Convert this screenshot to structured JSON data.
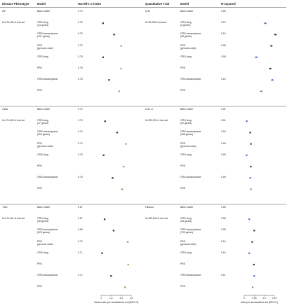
{
  "panels": [
    {
      "id": "left",
      "headers": {
        "col1": "Disease Phenotype",
        "col2": "Model",
        "col3": "Harrell's C-index"
      },
      "x_axis_label": "Hazard ratio per standardized unit [95% CI]",
      "ticks": [
        "1",
        "1.2",
        "1.4",
        "1.6"
      ],
      "groups": [
        {
          "name": "AF",
          "n": "N=476,165 in test set",
          "rows": [
            {
              "model": "Base model",
              "metric": "0.74"
            },
            {
              "model": "ITRS-drug\n(13 genes)",
              "metric": "0.75"
            },
            {
              "model": "ITRS-transcriptome\n(197 genes)",
              "metric": "0.75"
            },
            {
              "model": "PRS\n(genome-wide)",
              "metric": "0.75"
            },
            {
              "model": "ITRS-drug",
              "metric": "0.75"
            },
            {
              "model": "PRS",
              "metric": "0.75"
            },
            {
              "model": "ITRS-transcriptome",
              "metric": "0.76"
            },
            {
              "model": "PRS",
              "metric": ""
            }
          ]
        },
        {
          "name": "CAD",
          "n": "N=471,600 in test set",
          "rows": [
            {
              "model": "Base model",
              "metric": "0.72"
            },
            {
              "model": "ITRS-drug\n(37 genes)",
              "metric": "0.73"
            },
            {
              "model": "ITRS-transcriptome\n(254 genes)",
              "metric": "0.74"
            },
            {
              "model": "PRS\n(genome-wide)",
              "metric": "0.74"
            },
            {
              "model": "ITRS-drug",
              "metric": "0.75"
            },
            {
              "model": "PRS",
              "metric": ""
            },
            {
              "model": "ITRS-transcriptome",
              "metric": "0.75"
            },
            {
              "model": "PRS",
              "metric": ""
            }
          ]
        },
        {
          "name": "T2D",
          "n": "N=474,461 in test set",
          "rows": [
            {
              "model": "Base model",
              "metric": "0.67"
            },
            {
              "model": "ITRS-drug\n(35 genes)",
              "metric": "0.67"
            },
            {
              "model": "ITRS-transcriptome\n(325 genes)",
              "metric": "0.69"
            },
            {
              "model": "PRS\n(genome-wide)",
              "metric": "0.70"
            },
            {
              "model": "ITRS-drug",
              "metric": "0.71"
            },
            {
              "model": "PRS",
              "metric": ""
            },
            {
              "model": "ITRS-transcriptome",
              "metric": "0.71"
            },
            {
              "model": "PRS",
              "metric": ""
            }
          ]
        }
      ]
    },
    {
      "id": "right",
      "headers": {
        "col1": "Quantitative Trait",
        "col2": "Model",
        "col3": "R-squared"
      },
      "x_axis_label": "Beta per standardized unit [95% CI]",
      "ticks": [
        "0",
        "0.05",
        "0.1",
        "0.15"
      ],
      "groups": [
        {
          "name": "QTc",
          "n": "N=29,253 in test set",
          "rows": [
            {
              "model": "Base model",
              "metric": "0.06"
            },
            {
              "model": "ITRS-drug\n(6 genes)",
              "metric": "0.07"
            },
            {
              "model": "ITRS-transcriptome\n(55 genes)",
              "metric": "0.10"
            },
            {
              "model": "PRS\n(genome-wide)",
              "metric": "0.08"
            },
            {
              "model": "ITRS-drug",
              "metric": "0.08"
            },
            {
              "model": "PRS",
              "metric": ""
            },
            {
              "model": "ITRS-transcriptome",
              "metric": "0.10"
            },
            {
              "model": "PRS",
              "metric": ""
            }
          ]
        },
        {
          "name": "LDL-C",
          "n": "N=323,931 in test set",
          "rows": [
            {
              "model": "Base model",
              "metric": "0.01"
            },
            {
              "model": "ITRS-drug\n(22 genes)",
              "metric": "0.01"
            },
            {
              "model": "ITRS-transcriptome\n(308 genes)",
              "metric": "0.04"
            },
            {
              "model": "PRS\n(genome-wide)",
              "metric": "0.09"
            },
            {
              "model": "ITRS-drug",
              "metric": "0.09"
            },
            {
              "model": "PRS",
              "metric": ""
            },
            {
              "model": "ITRS-transcriptome",
              "metric": "0.09"
            },
            {
              "model": "PRS",
              "metric": ""
            }
          ]
        },
        {
          "name": "HbA1c",
          "n": "N=323,542 in test set",
          "rows": [
            {
              "model": "Base model",
              "metric": "0.06"
            },
            {
              "model": "ITRS-drug\n(93 genes)",
              "metric": "0.06"
            },
            {
              "model": "ITRS-transcriptome\n(799 genes)",
              "metric": "0.08"
            },
            {
              "model": "PRS\n(genome-wide)",
              "metric": "0.10"
            },
            {
              "model": "ITRS-drug",
              "metric": "0.10"
            },
            {
              "model": "PRS",
              "metric": ""
            },
            {
              "model": "ITRS-transcriptome",
              "metric": "0.11"
            },
            {
              "model": "PRS",
              "metric": ""
            }
          ]
        }
      ]
    }
  ],
  "chart_data": [
    {
      "type": "scatter",
      "xlabel": "Hazard ratio per standardized unit [95% CI]",
      "xlim": [
        1.0,
        1.6
      ],
      "series": [
        {
          "name": "AF",
          "points": [
            {
              "row": 1,
              "x": 1.04,
              "lo": 1.03,
              "hi": 1.05
            },
            {
              "row": 2,
              "x": 1.26,
              "lo": 1.24,
              "hi": 1.28
            },
            {
              "row": 3,
              "x": 1.4,
              "lo": 1.39,
              "hi": 1.42
            },
            {
              "row": 4,
              "x": 1.04,
              "lo": 1.03,
              "hi": 1.05
            },
            {
              "row": 5,
              "x": 1.4,
              "lo": 1.39,
              "hi": 1.41
            },
            {
              "row": 6,
              "x": 1.16,
              "lo": 1.15,
              "hi": 1.18
            },
            {
              "row": 7,
              "x": 1.36,
              "lo": 1.35,
              "hi": 1.37
            }
          ]
        },
        {
          "name": "CAD",
          "points": [
            {
              "row": 1,
              "x": 1.08,
              "lo": 1.07,
              "hi": 1.1
            },
            {
              "row": 2,
              "x": 1.32,
              "lo": 1.3,
              "hi": 1.34
            },
            {
              "row": 3,
              "x": 1.49,
              "lo": 1.48,
              "hi": 1.51
            },
            {
              "row": 4,
              "x": 1.05,
              "lo": 1.04,
              "hi": 1.07
            },
            {
              "row": 5,
              "x": 1.45,
              "lo": 1.43,
              "hi": 1.47
            },
            {
              "row": 6,
              "x": 1.23,
              "lo": 1.21,
              "hi": 1.25
            },
            {
              "row": 7,
              "x": 1.42,
              "lo": 1.4,
              "hi": 1.44
            }
          ]
        },
        {
          "name": "T2D",
          "points": [
            {
              "row": 1,
              "x": 1.07,
              "lo": 1.06,
              "hi": 1.09
            },
            {
              "row": 2,
              "x": 1.25,
              "lo": 1.23,
              "hi": 1.27
            },
            {
              "row": 3,
              "x": 1.53,
              "lo": 1.52,
              "hi": 1.55
            },
            {
              "row": 4,
              "x": 1.02,
              "lo": 1.01,
              "hi": 1.03
            },
            {
              "row": 5,
              "x": 1.54,
              "lo": 1.53,
              "hi": 1.55
            },
            {
              "row": 6,
              "x": 1.2,
              "lo": 1.19,
              "hi": 1.22
            },
            {
              "row": 7,
              "x": 1.48,
              "lo": 1.46,
              "hi": 1.5
            }
          ]
        }
      ],
      "marker_colors": [
        "#333333",
        "#333333",
        "#8ab05a",
        "#333333",
        "#8ab05a",
        "#333333",
        "#8ab05a"
      ]
    },
    {
      "type": "scatter",
      "xlabel": "Beta per standardized unit [95% CI]",
      "xlim": [
        0,
        0.15
      ],
      "series": [
        {
          "name": "QTc",
          "points": [
            {
              "row": 1,
              "x": 0.105,
              "lo": 0.097,
              "hi": 0.113
            },
            {
              "row": 2,
              "x": 0.155,
              "lo": 0.147,
              "hi": 0.163
            },
            {
              "row": 3,
              "x": 0.135,
              "lo": 0.127,
              "hi": 0.143
            },
            {
              "row": 4,
              "x": 0.06,
              "lo": 0.052,
              "hi": 0.068
            },
            {
              "row": 5,
              "x": 0.13,
              "lo": 0.122,
              "hi": 0.138
            },
            {
              "row": 6,
              "x": 0.14,
              "lo": 0.132,
              "hi": 0.148
            },
            {
              "row": 7,
              "x": 0.085,
              "lo": 0.077,
              "hi": 0.093
            }
          ]
        },
        {
          "name": "LDL-C",
          "points": [
            {
              "row": 1,
              "x": 0.013,
              "lo": 0.011,
              "hi": 0.015
            },
            {
              "row": 2,
              "x": 0.03,
              "lo": 0.028,
              "hi": 0.032
            },
            {
              "row": 3,
              "x": 0.033,
              "lo": 0.031,
              "hi": 0.035
            },
            {
              "row": 4,
              "x": 0.012,
              "lo": 0.01,
              "hi": 0.014
            },
            {
              "row": 5,
              "x": 0.033,
              "lo": 0.031,
              "hi": 0.035
            },
            {
              "row": 6,
              "x": 0.03,
              "lo": 0.028,
              "hi": 0.032
            },
            {
              "row": 7,
              "x": 0.033,
              "lo": 0.031,
              "hi": 0.035
            }
          ]
        },
        {
          "name": "HbA1c",
          "points": [
            {
              "row": 1,
              "x": 0.025,
              "lo": 0.023,
              "hi": 0.027
            },
            {
              "row": 2,
              "x": 0.05,
              "lo": 0.048,
              "hi": 0.052
            },
            {
              "row": 3,
              "x": 0.04,
              "lo": 0.038,
              "hi": 0.042
            },
            {
              "row": 4,
              "x": 0.025,
              "lo": 0.023,
              "hi": 0.027
            },
            {
              "row": 5,
              "x": 0.048,
              "lo": 0.046,
              "hi": 0.05
            },
            {
              "row": 6,
              "x": 0.05,
              "lo": 0.048,
              "hi": 0.052
            },
            {
              "row": 7,
              "x": 0.042,
              "lo": 0.04,
              "hi": 0.044
            }
          ]
        }
      ],
      "marker_colors": [
        "#4a6fd0",
        "#333333",
        "#333333",
        "#4a6fd0",
        "#333333",
        "#4a6fd0",
        "#8a8a8a"
      ]
    }
  ]
}
